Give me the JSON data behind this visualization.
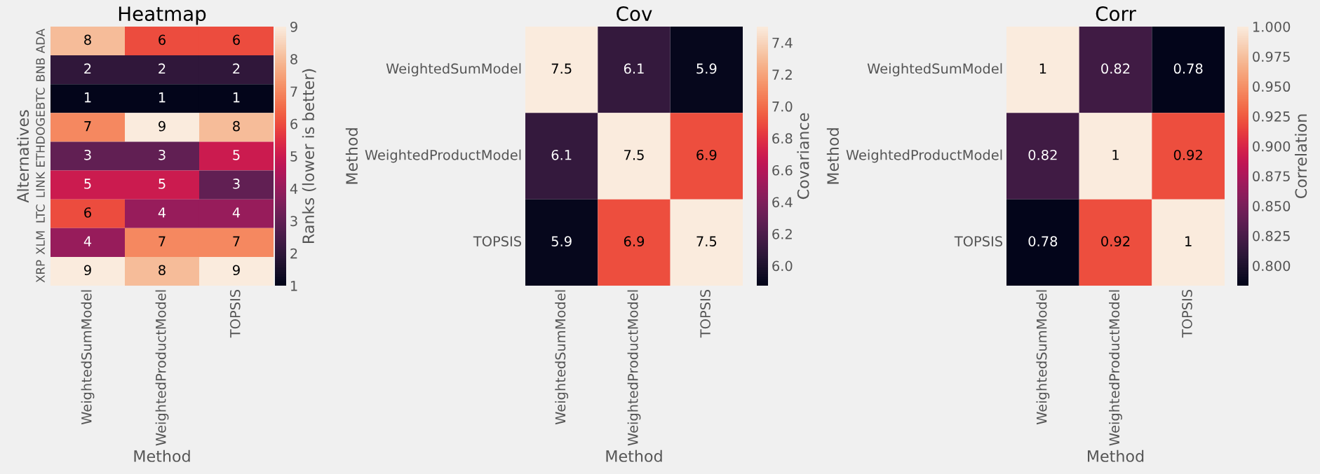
{
  "chart_data": [
    {
      "type": "heatmap",
      "title": "Heatmap",
      "xlabel": "Method",
      "ylabel": "Alternatives",
      "clabel": "Ranks (lower is better)",
      "categories": [
        "WeightedSumModel",
        "WeightedProductModel",
        "TOPSIS"
      ],
      "y_categories": [
        "ADA",
        "BNB",
        "BTC",
        "DOGE",
        "ETH",
        "LINK",
        "LTC",
        "XLM",
        "XRP"
      ],
      "cells": [
        [
          8,
          6,
          6
        ],
        [
          2,
          2,
          2
        ],
        [
          1,
          1,
          1
        ],
        [
          7,
          9,
          8
        ],
        [
          3,
          3,
          5
        ],
        [
          5,
          5,
          3
        ],
        [
          6,
          4,
          4
        ],
        [
          4,
          7,
          7
        ],
        [
          9,
          8,
          9
        ]
      ],
      "clim": [
        1,
        9
      ],
      "cticks": [
        1,
        2,
        3,
        4,
        5,
        6,
        7,
        8,
        9
      ],
      "data_labels": true
    },
    {
      "type": "heatmap",
      "title": "Cov",
      "xlabel": "Method",
      "ylabel": "Method",
      "clabel": "Covariance",
      "categories": [
        "WeightedSumModel",
        "WeightedProductModel",
        "TOPSIS"
      ],
      "y_categories": [
        "WeightedSumModel",
        "WeightedProductModel",
        "TOPSIS"
      ],
      "cells": [
        [
          7.5,
          6.1,
          5.9
        ],
        [
          6.1,
          7.5,
          6.9
        ],
        [
          5.9,
          6.9,
          7.5
        ]
      ],
      "clim": [
        5.875,
        7.5
      ],
      "cticks": [
        {
          "value": 6.0,
          "label": "6.0"
        },
        6.2,
        6.4,
        6.6,
        6.8,
        {
          "value": 7.0,
          "label": "7.0"
        },
        7.2,
        7.4
      ],
      "data_labels": true
    },
    {
      "type": "heatmap",
      "title": "Corr",
      "xlabel": "Method",
      "ylabel": "Method",
      "clabel": "Correlation",
      "categories": [
        "WeightedSumModel",
        "WeightedProductModel",
        "TOPSIS"
      ],
      "y_categories": [
        "WeightedSumModel",
        "WeightedProductModel",
        "TOPSIS"
      ],
      "cells": [
        [
          1,
          0.82,
          0.78
        ],
        [
          0.82,
          1,
          0.92
        ],
        [
          0.78,
          0.92,
          1
        ]
      ],
      "clim": [
        0.7833,
        1.0
      ],
      "cticks": [
        {
          "value": 0.8,
          "label": "0.800"
        },
        0.825,
        {
          "value": 0.85,
          "label": "0.850"
        },
        0.875,
        {
          "value": 0.9,
          "label": "0.900"
        },
        0.925,
        {
          "value": 0.95,
          "label": "0.950"
        },
        0.975,
        {
          "value": 1.0,
          "label": "1.000"
        }
      ],
      "data_labels": true
    }
  ]
}
